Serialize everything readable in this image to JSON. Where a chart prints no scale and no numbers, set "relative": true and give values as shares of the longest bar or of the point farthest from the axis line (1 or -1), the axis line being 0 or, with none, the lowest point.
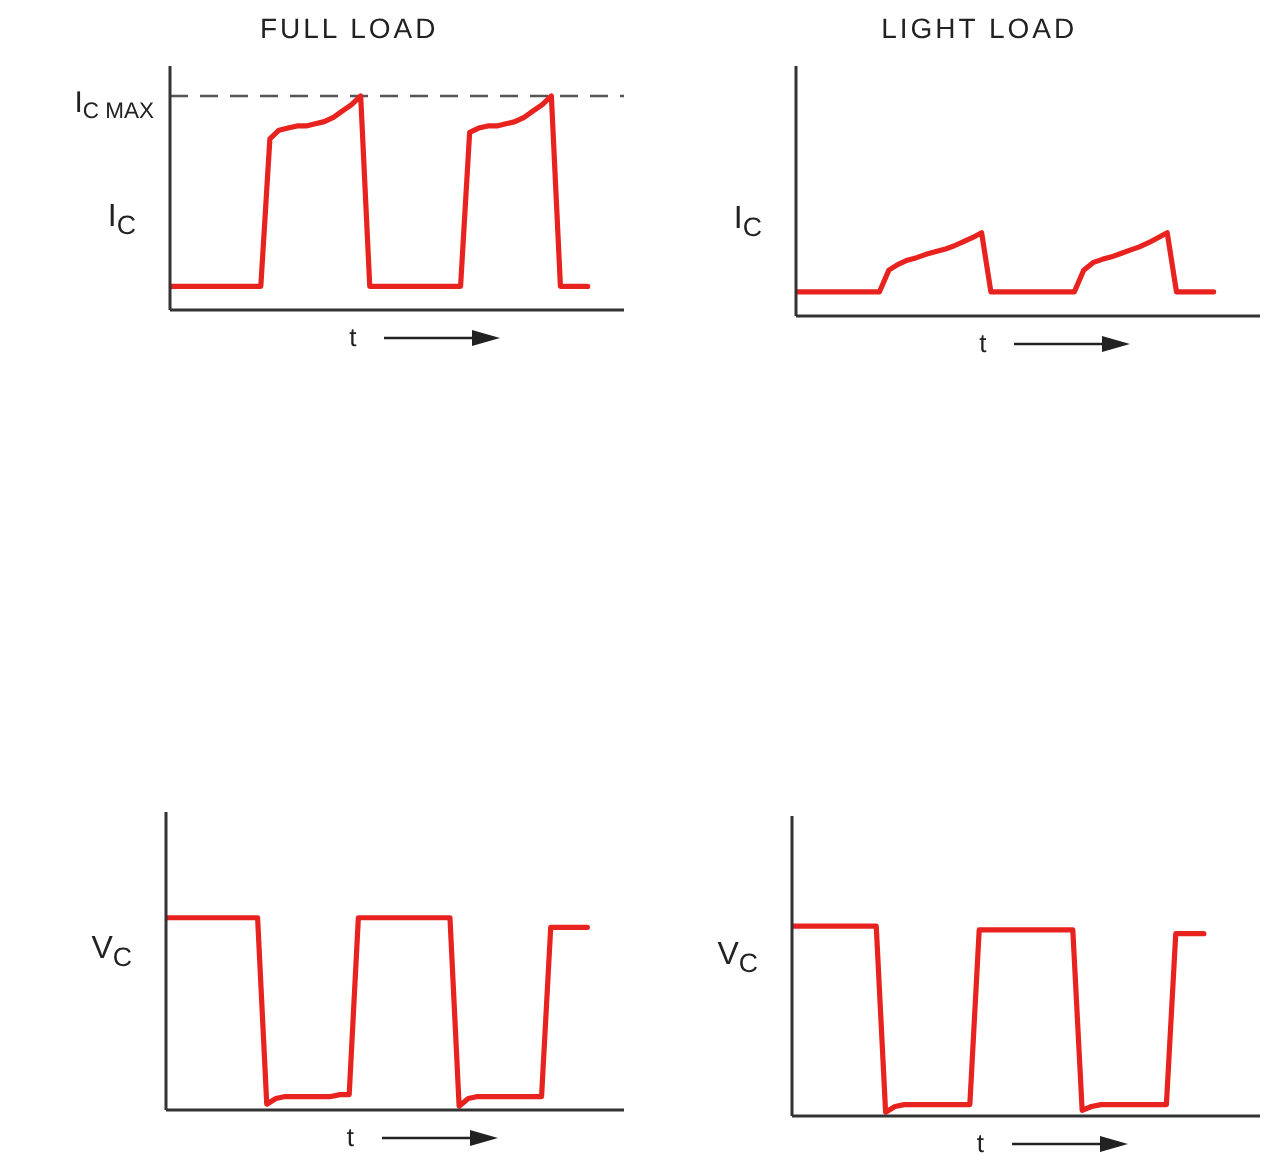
{
  "chart_data": [
    {
      "type": "line",
      "title": "FULL LOAD",
      "ylabel": "I$_{C}$",
      "xlabel": "t",
      "relative": true,
      "grid": false,
      "marker": "none",
      "line_style": "solid",
      "categories": [
        null,
        null,
        null,
        null,
        null,
        null,
        null,
        null,
        null,
        null,
        null,
        null,
        null,
        null,
        null,
        null,
        null,
        null,
        null,
        null,
        null,
        null,
        null,
        null,
        null,
        null,
        null,
        null,
        null,
        null,
        null,
        null,
        null,
        null,
        null,
        null,
        null,
        null,
        null,
        null,
        null,
        null,
        null,
        null,
        null,
        null,
        null
      ],
      "series": [
        {
          "color": "#e8231f",
          "values": [
            0.11,
            0.11,
            0.11,
            0.11,
            0.11,
            0.11,
            0.11,
            0.11,
            0.11,
            0.11,
            0.11,
            0.8,
            0.84,
            0.85,
            0.86,
            0.86,
            0.87,
            0.88,
            0.9,
            0.93,
            0.96,
            1,
            0.11,
            0.11,
            0.11,
            0.11,
            0.11,
            0.11,
            0.11,
            0.11,
            0.11,
            0.11,
            0.11,
            0.83,
            0.85,
            0.86,
            0.86,
            0.87,
            0.88,
            0.9,
            0.93,
            0.96,
            1,
            0.11,
            0.11,
            0.11,
            0.11
          ]
        }
      ],
      "ref_lines": [
        {
          "axis": "y",
          "value": 1,
          "label": "I$_{C MAX}$",
          "line_style": "dashed",
          "color": "#555555"
        }
      ]
    },
    {
      "type": "line",
      "title": "LIGHT LOAD",
      "ylabel": "I$_{C}$",
      "xlabel": "t",
      "relative": true,
      "grid": false,
      "marker": "none",
      "line_style": "solid",
      "categories": [
        null,
        null,
        null,
        null,
        null,
        null,
        null,
        null,
        null,
        null,
        null,
        null,
        null,
        null,
        null,
        null,
        null,
        null,
        null,
        null,
        null,
        null,
        null,
        null,
        null,
        null,
        null,
        null,
        null,
        null,
        null,
        null,
        null,
        null,
        null,
        null,
        null,
        null,
        null,
        null,
        null,
        null,
        null,
        null,
        null,
        null
      ],
      "series": [
        {
          "color": "#e8231f",
          "values": [
            0.29,
            0.29,
            0.29,
            0.29,
            0.29,
            0.29,
            0.29,
            0.29,
            0.29,
            0.29,
            0.55,
            0.62,
            0.67,
            0.7,
            0.74,
            0.77,
            0.8,
            0.84,
            0.89,
            0.94,
            1,
            0.29,
            0.29,
            0.29,
            0.29,
            0.29,
            0.29,
            0.29,
            0.29,
            0.29,
            0.29,
            0.55,
            0.64,
            0.68,
            0.71,
            0.75,
            0.79,
            0.83,
            0.88,
            0.94,
            1,
            0.29,
            0.29,
            0.29,
            0.29,
            0.29
          ]
        }
      ]
    },
    {
      "type": "line",
      "ylabel": "V$_{C}$",
      "xlabel": "t",
      "relative": true,
      "grid": false,
      "marker": "none",
      "line_style": "solid",
      "categories": [
        null,
        null,
        null,
        null,
        null,
        null,
        null,
        null,
        null,
        null,
        null,
        null,
        null,
        null,
        null,
        null,
        null,
        null,
        null,
        null,
        null,
        null,
        null,
        null,
        null,
        null,
        null,
        null,
        null,
        null,
        null,
        null,
        null,
        null,
        null,
        null,
        null,
        null,
        null,
        null,
        null,
        null,
        null,
        null,
        null,
        null,
        null
      ],
      "series": [
        {
          "color": "#e8231f",
          "values": [
            1,
            1,
            1,
            1,
            1,
            1,
            1,
            1,
            1,
            1,
            1,
            0.03,
            0.06,
            0.07,
            0.07,
            0.07,
            0.07,
            0.07,
            0.07,
            0.08,
            0.08,
            1,
            1,
            1,
            1,
            1,
            1,
            1,
            1,
            1,
            1,
            1,
            0.02,
            0.06,
            0.07,
            0.07,
            0.07,
            0.07,
            0.07,
            0.07,
            0.07,
            0.07,
            0.95,
            0.95,
            0.95,
            0.95,
            0.95
          ]
        }
      ]
    },
    {
      "type": "line",
      "ylabel": "V$_{C}$",
      "xlabel": "t",
      "relative": true,
      "grid": false,
      "marker": "none",
      "line_style": "solid",
      "categories": [
        null,
        null,
        null,
        null,
        null,
        null,
        null,
        null,
        null,
        null,
        null,
        null,
        null,
        null,
        null,
        null,
        null,
        null,
        null,
        null,
        null,
        null,
        null,
        null,
        null,
        null,
        null,
        null,
        null,
        null,
        null,
        null,
        null,
        null,
        null,
        null,
        null,
        null,
        null,
        null,
        null,
        null,
        null,
        null,
        null
      ],
      "series": [
        {
          "color": "#e8231f",
          "values": [
            1,
            1,
            1,
            1,
            1,
            1,
            1,
            1,
            1,
            1,
            0.02,
            0.05,
            0.06,
            0.06,
            0.06,
            0.06,
            0.06,
            0.06,
            0.06,
            0.06,
            0.98,
            0.98,
            0.98,
            0.98,
            0.98,
            0.98,
            0.98,
            0.98,
            0.98,
            0.98,
            0.98,
            0.03,
            0.05,
            0.06,
            0.06,
            0.06,
            0.06,
            0.06,
            0.06,
            0.06,
            0.06,
            0.96,
            0.96,
            0.96,
            0.96
          ]
        }
      ]
    }
  ]
}
